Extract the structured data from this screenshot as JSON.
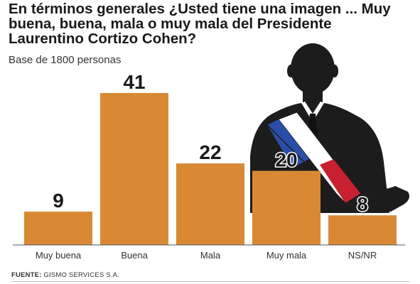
{
  "title": "En términos generales ¿Usted tiene una imagen ... Muy buena, buena, mala o muy mala del Presidente Laurentino Cortizo Cohen?",
  "subtitle": "Base de 1800 personas",
  "source": {
    "label": "FUENTE:",
    "text": "GISMO SERVICES S.A."
  },
  "colors": {
    "bar": "#d98934",
    "sash_blue": "#2a4ea8",
    "sash_white": "#ffffff",
    "sash_red": "#c8202f",
    "silhouette": "#1c1c1c"
  },
  "illustration": "presidential-silhouette-icon",
  "chart_data": {
    "type": "bar",
    "categories": [
      "Muy buena",
      "Buena",
      "Mala",
      "Muy mala",
      "NS/NR"
    ],
    "values": [
      9,
      41,
      22,
      20,
      8
    ],
    "title": "En términos generales ¿Usted tiene una imagen ... Muy buena, buena, mala o muy mala del Presidente Laurentino Cortizo Cohen?",
    "subtitle": "Base de 1800 personas",
    "xlabel": "",
    "ylabel": "",
    "ylim": [
      0,
      41
    ],
    "grid": false,
    "legend": "none",
    "data_labels": true
  }
}
